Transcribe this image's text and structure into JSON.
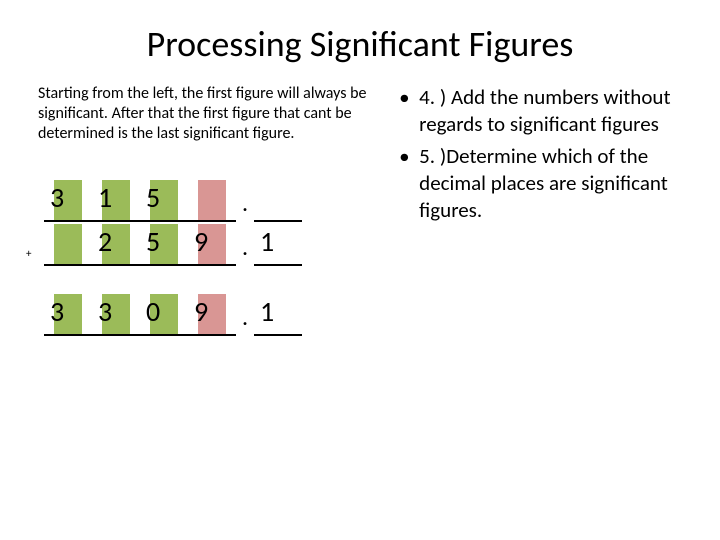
{
  "title": "Processing Significant Figures",
  "intro": "Starting from the left, the first figure will always be significant. After that the first figure that cant be determined is the last significant figure.",
  "bullets": [
    "4. ) Add the numbers without regards to significant figures",
    "5. )Determine which of the decimal places are significant figures."
  ],
  "plus_sign": "+",
  "colors": {
    "green": "#9bbb59",
    "red": "#d99694",
    "text": "#000000",
    "background": "#ffffff"
  },
  "calc": {
    "rows": [
      {
        "cells": [
          {
            "digit": "3",
            "highlight": "green"
          },
          {
            "digit": "1",
            "highlight": "green"
          },
          {
            "digit": "5",
            "highlight": "green"
          },
          {
            "digit": "",
            "highlight": "red"
          }
        ],
        "decimal_before_last": true,
        "trailing": ""
      },
      {
        "cells": [
          {
            "digit": "",
            "highlight": "green"
          },
          {
            "digit": "2",
            "highlight": "green"
          },
          {
            "digit": "5",
            "highlight": "green"
          },
          {
            "digit": "9",
            "highlight": "red"
          }
        ],
        "decimal_before_last": false,
        "trailing": "1",
        "show_plus": true
      }
    ],
    "result": {
      "cells": [
        {
          "digit": "3",
          "highlight": "green"
        },
        {
          "digit": "3",
          "highlight": "green"
        },
        {
          "digit": "0",
          "highlight": "green"
        },
        {
          "digit": "9",
          "highlight": "red"
        }
      ],
      "trailing": "1"
    }
  }
}
